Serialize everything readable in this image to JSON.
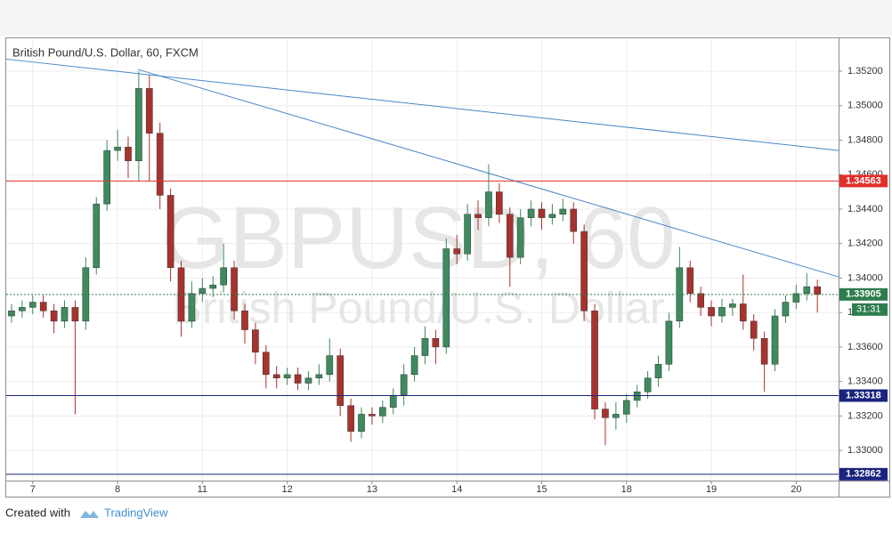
{
  "chart_data": {
    "type": "candlestick",
    "title": "British Pound/U.S. Dollar, 60, FXCM",
    "watermark": [
      "GBPUSD, 60",
      "British Pound/U.S. Dollar"
    ],
    "up_color": "#3d8b5e",
    "down_color": "#a8322e",
    "grid": true,
    "xlim": [
      0,
      235.5
    ],
    "ylim": [
      1.32825,
      1.35391
    ],
    "xticks": [
      {
        "value": 7.5,
        "label": "7"
      },
      {
        "value": 31.5,
        "label": "8"
      },
      {
        "value": 55.5,
        "label": "11"
      },
      {
        "value": 79.5,
        "label": "12"
      },
      {
        "value": 103.5,
        "label": "13"
      },
      {
        "value": 127.5,
        "label": "14"
      },
      {
        "value": 151.5,
        "label": "15"
      },
      {
        "value": 175.5,
        "label": "18"
      },
      {
        "value": 199.5,
        "label": "19"
      },
      {
        "value": 223.5,
        "label": "20"
      }
    ],
    "yticks": [
      {
        "value": 1.33,
        "label": "1.33000"
      },
      {
        "value": 1.332,
        "label": "1.33200"
      },
      {
        "value": 1.334,
        "label": "1.33400"
      },
      {
        "value": 1.336,
        "label": "1.33600"
      },
      {
        "value": 1.338,
        "label": "1.33800"
      },
      {
        "value": 1.34,
        "label": "1.34000"
      },
      {
        "value": 1.342,
        "label": "1.34200"
      },
      {
        "value": 1.344,
        "label": "1.34400"
      },
      {
        "value": 1.346,
        "label": "1.34600"
      },
      {
        "value": 1.348,
        "label": "1.34800"
      },
      {
        "value": 1.35,
        "label": "1.35000"
      },
      {
        "value": 1.352,
        "label": "1.35200"
      }
    ],
    "x": [
      1.5,
      4.5,
      7.5,
      10.5,
      13.5,
      16.5,
      19.5,
      22.5,
      25.5,
      28.5,
      31.5,
      34.5,
      37.5,
      40.5,
      43.5,
      46.5,
      49.5,
      52.5,
      55.5,
      58.5,
      61.5,
      64.5,
      67.5,
      70.5,
      73.5,
      76.5,
      79.5,
      82.5,
      85.5,
      88.5,
      91.5,
      94.5,
      97.5,
      100.5,
      103.5,
      106.5,
      109.5,
      112.5,
      115.5,
      118.5,
      121.5,
      124.5,
      127.5,
      130.5,
      133.5,
      136.5,
      139.5,
      142.5,
      145.5,
      148.5,
      151.5,
      154.5,
      157.5,
      160.5,
      163.5,
      166.5,
      169.5,
      172.5,
      175.5,
      178.5,
      181.5,
      184.5,
      187.5,
      190.5,
      193.5,
      196.5,
      199.5,
      202.5,
      205.5,
      208.5,
      211.5,
      214.5,
      217.5,
      220.5,
      223.5,
      226.5,
      229.5
    ],
    "open": [
      1.3378,
      1.3381,
      1.3383,
      1.3386,
      1.3381,
      1.3375,
      1.3383,
      1.3375,
      1.3406,
      1.3443,
      1.3474,
      1.3476,
      1.3468,
      1.351,
      1.3484,
      1.3448,
      1.3406,
      1.3375,
      1.3391,
      1.3394,
      1.3396,
      1.3406,
      1.3381,
      1.337,
      1.3357,
      1.3344,
      1.3342,
      1.3344,
      1.3339,
      1.3342,
      1.3344,
      1.3355,
      1.3326,
      1.3311,
      1.3321,
      1.332,
      1.3325,
      1.3332,
      1.3344,
      1.3355,
      1.3365,
      1.336,
      1.3417,
      1.3414,
      1.3437,
      1.3435,
      1.345,
      1.3437,
      1.3412,
      1.3435,
      1.344,
      1.3435,
      1.3437,
      1.344,
      1.3427,
      1.3381,
      1.3324,
      1.3319,
      1.3321,
      1.3329,
      1.3334,
      1.3342,
      1.335,
      1.3375,
      1.3406,
      1.3391,
      1.3383,
      1.3378,
      1.3383,
      1.3385,
      1.3375,
      1.3365,
      1.335,
      1.3378,
      1.3386,
      1.3391,
      1.3395
    ],
    "high": [
      1.3385,
      1.3387,
      1.339,
      1.339,
      1.3385,
      1.3387,
      1.3387,
      1.3412,
      1.3447,
      1.348,
      1.3486,
      1.3482,
      1.352,
      1.3518,
      1.349,
      1.3452,
      1.341,
      1.3398,
      1.34,
      1.3401,
      1.342,
      1.341,
      1.3385,
      1.3374,
      1.3361,
      1.3349,
      1.3348,
      1.3348,
      1.3346,
      1.335,
      1.3365,
      1.3359,
      1.333,
      1.3325,
      1.3325,
      1.3329,
      1.3336,
      1.335,
      1.336,
      1.3372,
      1.337,
      1.3423,
      1.3425,
      1.3443,
      1.3445,
      1.3466,
      1.3455,
      1.3441,
      1.344,
      1.3445,
      1.3444,
      1.3443,
      1.3446,
      1.3444,
      1.3431,
      1.3385,
      1.3328,
      1.3328,
      1.3333,
      1.3338,
      1.3346,
      1.3355,
      1.338,
      1.3418,
      1.341,
      1.3395,
      1.3387,
      1.3388,
      1.3388,
      1.3402,
      1.3379,
      1.3369,
      1.3382,
      1.339,
      1.3396,
      1.3403,
      1.3399
    ],
    "low": [
      1.3374,
      1.3377,
      1.3379,
      1.3377,
      1.3368,
      1.3371,
      1.3321,
      1.337,
      1.3402,
      1.3439,
      1.3468,
      1.3458,
      1.3456,
      1.3456,
      1.344,
      1.3398,
      1.3366,
      1.3371,
      1.3386,
      1.3389,
      1.3392,
      1.3376,
      1.3362,
      1.335,
      1.3336,
      1.3336,
      1.3338,
      1.3335,
      1.3335,
      1.3338,
      1.334,
      1.332,
      1.3305,
      1.3307,
      1.3315,
      1.3316,
      1.3321,
      1.3326,
      1.334,
      1.335,
      1.335,
      1.3356,
      1.3408,
      1.341,
      1.3428,
      1.343,
      1.3432,
      1.3395,
      1.3408,
      1.343,
      1.3428,
      1.3431,
      1.3433,
      1.342,
      1.3375,
      1.3318,
      1.3303,
      1.3312,
      1.3316,
      1.3325,
      1.333,
      1.3337,
      1.3346,
      1.3371,
      1.3386,
      1.3378,
      1.3372,
      1.3374,
      1.3378,
      1.337,
      1.3358,
      1.3334,
      1.3346,
      1.3374,
      1.3382,
      1.3387,
      1.338
    ],
    "close": [
      1.3381,
      1.3383,
      1.3386,
      1.3381,
      1.3375,
      1.3383,
      1.3375,
      1.3406,
      1.3443,
      1.3474,
      1.3476,
      1.3468,
      1.351,
      1.3484,
      1.3448,
      1.3406,
      1.3375,
      1.3391,
      1.3394,
      1.3396,
      1.3406,
      1.3381,
      1.337,
      1.3357,
      1.3344,
      1.3342,
      1.3344,
      1.3339,
      1.3342,
      1.3344,
      1.3355,
      1.3326,
      1.3311,
      1.3321,
      1.332,
      1.3325,
      1.3332,
      1.3344,
      1.3355,
      1.3365,
      1.336,
      1.3417,
      1.3414,
      1.3437,
      1.3435,
      1.345,
      1.3437,
      1.3412,
      1.3435,
      1.344,
      1.3435,
      1.3437,
      1.344,
      1.3427,
      1.3381,
      1.3324,
      1.3319,
      1.3321,
      1.3329,
      1.3334,
      1.3342,
      1.335,
      1.3375,
      1.3406,
      1.3391,
      1.3383,
      1.3378,
      1.3383,
      1.3385,
      1.3375,
      1.3365,
      1.335,
      1.3378,
      1.3386,
      1.3391,
      1.3395,
      1.33905
    ],
    "trendlines": [
      {
        "x": [
          0,
          235.5
        ],
        "y": [
          1.3527,
          1.3474
        ],
        "color": "#4a86c8"
      },
      {
        "x": [
          37.3,
          235.5
        ],
        "y": [
          1.3521,
          1.34007
        ],
        "color": "#4a86c8"
      }
    ],
    "hlines": [
      {
        "value": 1.34563,
        "color": "#e0302b"
      },
      {
        "value": 1.33318,
        "color": "#1a237e"
      },
      {
        "value": 1.32862,
        "color": "#1a237e"
      },
      {
        "value": 1.33905,
        "color": "#2e7d4f",
        "dashed": true
      }
    ],
    "countdown": "31:31",
    "footer": {
      "prefix": "Created with",
      "brand": "TradingView"
    }
  }
}
